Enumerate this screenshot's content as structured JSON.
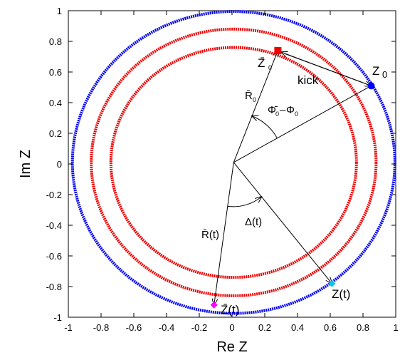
{
  "chart_data": {
    "type": "scatter",
    "xlabel": "Re Z",
    "ylabel": "Im Z",
    "xlim": [
      -1,
      1
    ],
    "ylim": [
      -1,
      1
    ],
    "xticks": [
      -1,
      -0.8,
      -0.6,
      -0.4,
      -0.2,
      0,
      0.2,
      0.4,
      0.6,
      0.8,
      1
    ],
    "yticks": [
      -1,
      -0.8,
      -0.6,
      -0.4,
      -0.2,
      0,
      0.2,
      0.4,
      0.6,
      0.8,
      1
    ],
    "xtick_labels": [
      "-1",
      "-0.8",
      "-0.6",
      "-0.4",
      "-0.2",
      "0",
      "0.2",
      "0.4",
      "0.6",
      "0.8",
      "1"
    ],
    "ytick_labels": [
      "-1",
      "-0.8",
      "-0.6",
      "-0.4",
      "-0.2",
      "0",
      "0.2",
      "0.4",
      "0.6",
      "0.8",
      "1"
    ],
    "grid": false,
    "origin": [
      0.01,
      0.01
    ],
    "series": [
      {
        "color": "#0000ee",
        "center": [
          0.01,
          0.01
        ],
        "radius": 0.985
      },
      {
        "color": "#ee0000",
        "center": [
          0.01,
          0.01
        ],
        "radius": 0.87
      },
      {
        "color": "#ee0000",
        "center": [
          0.01,
          0.01
        ],
        "radius": 0.75
      }
    ],
    "points": [
      {
        "id": "Z0",
        "x": 0.85,
        "y": 0.51,
        "color": "#0000ff",
        "marker": "circle",
        "label": "Z",
        "sub": "0"
      },
      {
        "id": "Zbar0",
        "x": 0.28,
        "y": 0.74,
        "color": "#ee0000",
        "marker": "square",
        "label": "Z̄",
        "sub": "0"
      },
      {
        "id": "Zt",
        "x": 0.61,
        "y": -0.78,
        "color": "#00c8e8",
        "marker": "diamond",
        "label": "Z(t)"
      },
      {
        "id": "Zbart",
        "x": -0.11,
        "y": -0.92,
        "color": "#ff00ff",
        "marker": "diamond",
        "label": "Z̄(t)"
      }
    ],
    "annotations": {
      "kick": "kick",
      "r0_main": "R̄",
      "r0_sub": "0",
      "phi_a": "Φ̄",
      "phi_a_sub": "0",
      "phi_sep": "–",
      "phi_b": "Φ",
      "phi_b_sub": "0",
      "rt": "R̄(t)",
      "delta": "Δ(t)"
    }
  }
}
